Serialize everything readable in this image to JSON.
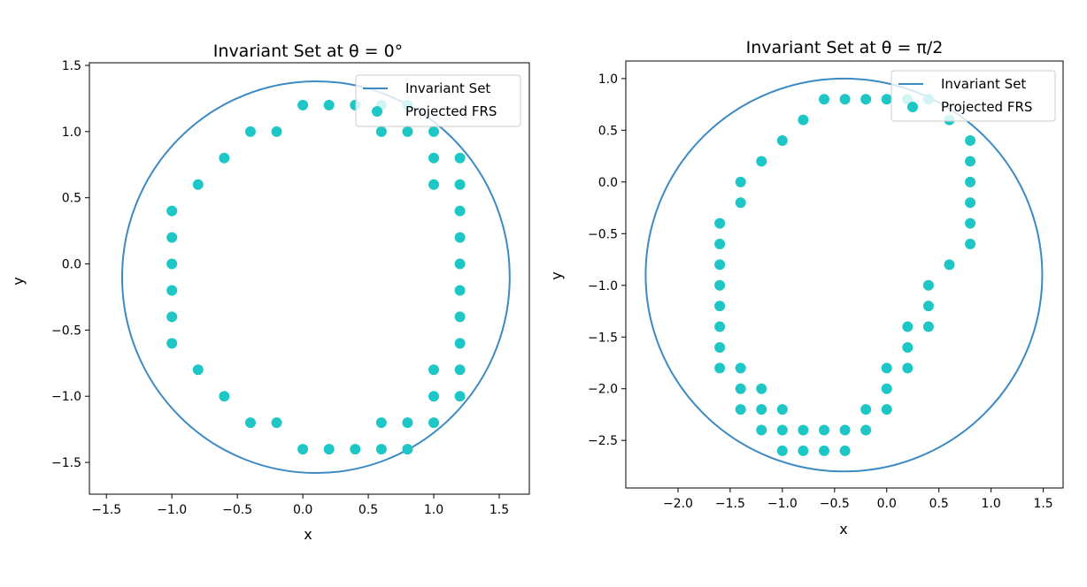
{
  "colors": {
    "circle": "#3b8ac4",
    "points": "#1ec6c6",
    "frame": "#000000",
    "legend_border": "#cccccc"
  },
  "chart_data": [
    {
      "type": "scatter",
      "title": "Invariant Set at θ = 0°",
      "xlabel": "x",
      "ylabel": "y",
      "xlim": [
        -1.63,
        1.73
      ],
      "ylim": [
        -1.74,
        1.52
      ],
      "xticks": [
        -1.5,
        -1.0,
        -0.5,
        0.0,
        0.5,
        1.0,
        1.5
      ],
      "xtick_labels": [
        "−1.5",
        "−1.0",
        "−0.5",
        "0.0",
        "0.5",
        "1.0",
        "1.5"
      ],
      "yticks": [
        -1.5,
        -1.0,
        -0.5,
        0.0,
        0.5,
        1.0,
        1.5
      ],
      "ytick_labels": [
        "−1.5",
        "−1.0",
        "−0.5",
        "0.0",
        "0.5",
        "1.0",
        "1.5"
      ],
      "legend_position": "upper right",
      "series": [
        {
          "name": "Invariant Set",
          "kind": "line",
          "shape": "circle",
          "center": [
            0.1,
            -0.1
          ],
          "radius": 1.48
        },
        {
          "name": "Projected FRS",
          "kind": "scatter",
          "points": [
            [
              0.0,
              1.2
            ],
            [
              0.2,
              1.2
            ],
            [
              0.4,
              1.2
            ],
            [
              0.6,
              1.2
            ],
            [
              0.8,
              1.2
            ],
            [
              -0.4,
              1.0
            ],
            [
              -0.2,
              1.0
            ],
            [
              0.6,
              1.0
            ],
            [
              0.8,
              1.0
            ],
            [
              1.0,
              1.0
            ],
            [
              -0.6,
              0.8
            ],
            [
              1.0,
              0.8
            ],
            [
              1.2,
              0.8
            ],
            [
              -0.8,
              0.6
            ],
            [
              1.0,
              0.6
            ],
            [
              1.2,
              0.6
            ],
            [
              -1.0,
              0.4
            ],
            [
              1.2,
              0.4
            ],
            [
              -1.0,
              0.2
            ],
            [
              1.2,
              0.2
            ],
            [
              -1.0,
              0.0
            ],
            [
              1.2,
              0.0
            ],
            [
              -1.0,
              -0.2
            ],
            [
              1.2,
              -0.2
            ],
            [
              -1.0,
              -0.4
            ],
            [
              1.2,
              -0.4
            ],
            [
              -1.0,
              -0.6
            ],
            [
              1.2,
              -0.6
            ],
            [
              -0.8,
              -0.8
            ],
            [
              1.0,
              -0.8
            ],
            [
              1.2,
              -0.8
            ],
            [
              -0.6,
              -1.0
            ],
            [
              1.0,
              -1.0
            ],
            [
              1.2,
              -1.0
            ],
            [
              -0.4,
              -1.2
            ],
            [
              -0.2,
              -1.2
            ],
            [
              0.6,
              -1.2
            ],
            [
              0.8,
              -1.2
            ],
            [
              1.0,
              -1.2
            ],
            [
              0.0,
              -1.4
            ],
            [
              0.2,
              -1.4
            ],
            [
              0.4,
              -1.4
            ],
            [
              0.6,
              -1.4
            ],
            [
              0.8,
              -1.4
            ]
          ]
        }
      ]
    },
    {
      "type": "scatter",
      "title": "Invariant Set at θ = π/2",
      "xlabel": "x",
      "ylabel": "y",
      "xlim": [
        -2.5,
        1.69
      ],
      "ylim": [
        -2.96,
        1.17
      ],
      "xticks": [
        -2.0,
        -1.5,
        -1.0,
        -0.5,
        0.0,
        0.5,
        1.0,
        1.5
      ],
      "xtick_labels": [
        "−2.0",
        "−1.5",
        "−1.0",
        "−0.5",
        "0.0",
        "0.5",
        "1.0",
        "1.5"
      ],
      "yticks": [
        1.0,
        0.5,
        0.0,
        -0.5,
        -1.0,
        -1.5,
        -2.0,
        -2.5
      ],
      "ytick_labels": [
        "1.0",
        "0.5",
        "0.0",
        "−0.5",
        "−1.0",
        "−1.5",
        "−2.0",
        "−2.5"
      ],
      "legend_position": "upper right",
      "series": [
        {
          "name": "Invariant Set",
          "kind": "line",
          "shape": "circle",
          "center": [
            -0.41,
            -0.9
          ],
          "radius": 1.9
        },
        {
          "name": "Projected FRS",
          "kind": "scatter",
          "points": [
            [
              -0.6,
              0.8
            ],
            [
              -0.4,
              0.8
            ],
            [
              -0.2,
              0.8
            ],
            [
              0.0,
              0.8
            ],
            [
              0.2,
              0.8
            ],
            [
              0.4,
              0.8
            ],
            [
              -0.8,
              0.6
            ],
            [
              0.6,
              0.6
            ],
            [
              -1.0,
              0.4
            ],
            [
              0.8,
              0.4
            ],
            [
              -1.2,
              0.2
            ],
            [
              0.8,
              0.2
            ],
            [
              -1.4,
              0.0
            ],
            [
              0.8,
              0.0
            ],
            [
              -1.4,
              -0.2
            ],
            [
              0.8,
              -0.2
            ],
            [
              -1.6,
              -0.4
            ],
            [
              0.8,
              -0.4
            ],
            [
              -1.6,
              -0.6
            ],
            [
              0.8,
              -0.6
            ],
            [
              -1.6,
              -0.8
            ],
            [
              0.6,
              -0.8
            ],
            [
              -1.6,
              -1.0
            ],
            [
              0.4,
              -1.0
            ],
            [
              -1.6,
              -1.2
            ],
            [
              0.4,
              -1.2
            ],
            [
              -1.6,
              -1.4
            ],
            [
              0.2,
              -1.4
            ],
            [
              0.4,
              -1.4
            ],
            [
              -1.6,
              -1.6
            ],
            [
              0.2,
              -1.6
            ],
            [
              -1.6,
              -1.8
            ],
            [
              -1.4,
              -1.8
            ],
            [
              0.0,
              -1.8
            ],
            [
              0.2,
              -1.8
            ],
            [
              -1.4,
              -2.0
            ],
            [
              -1.2,
              -2.0
            ],
            [
              0.0,
              -2.0
            ],
            [
              -1.4,
              -2.2
            ],
            [
              -1.2,
              -2.2
            ],
            [
              -1.0,
              -2.2
            ],
            [
              -0.2,
              -2.2
            ],
            [
              0.0,
              -2.2
            ],
            [
              -1.2,
              -2.4
            ],
            [
              -1.0,
              -2.4
            ],
            [
              -0.8,
              -2.4
            ],
            [
              -0.6,
              -2.4
            ],
            [
              -0.4,
              -2.4
            ],
            [
              -0.2,
              -2.4
            ],
            [
              -1.0,
              -2.6
            ],
            [
              -0.8,
              -2.6
            ],
            [
              -0.6,
              -2.6
            ],
            [
              -0.4,
              -2.6
            ]
          ]
        }
      ]
    }
  ]
}
